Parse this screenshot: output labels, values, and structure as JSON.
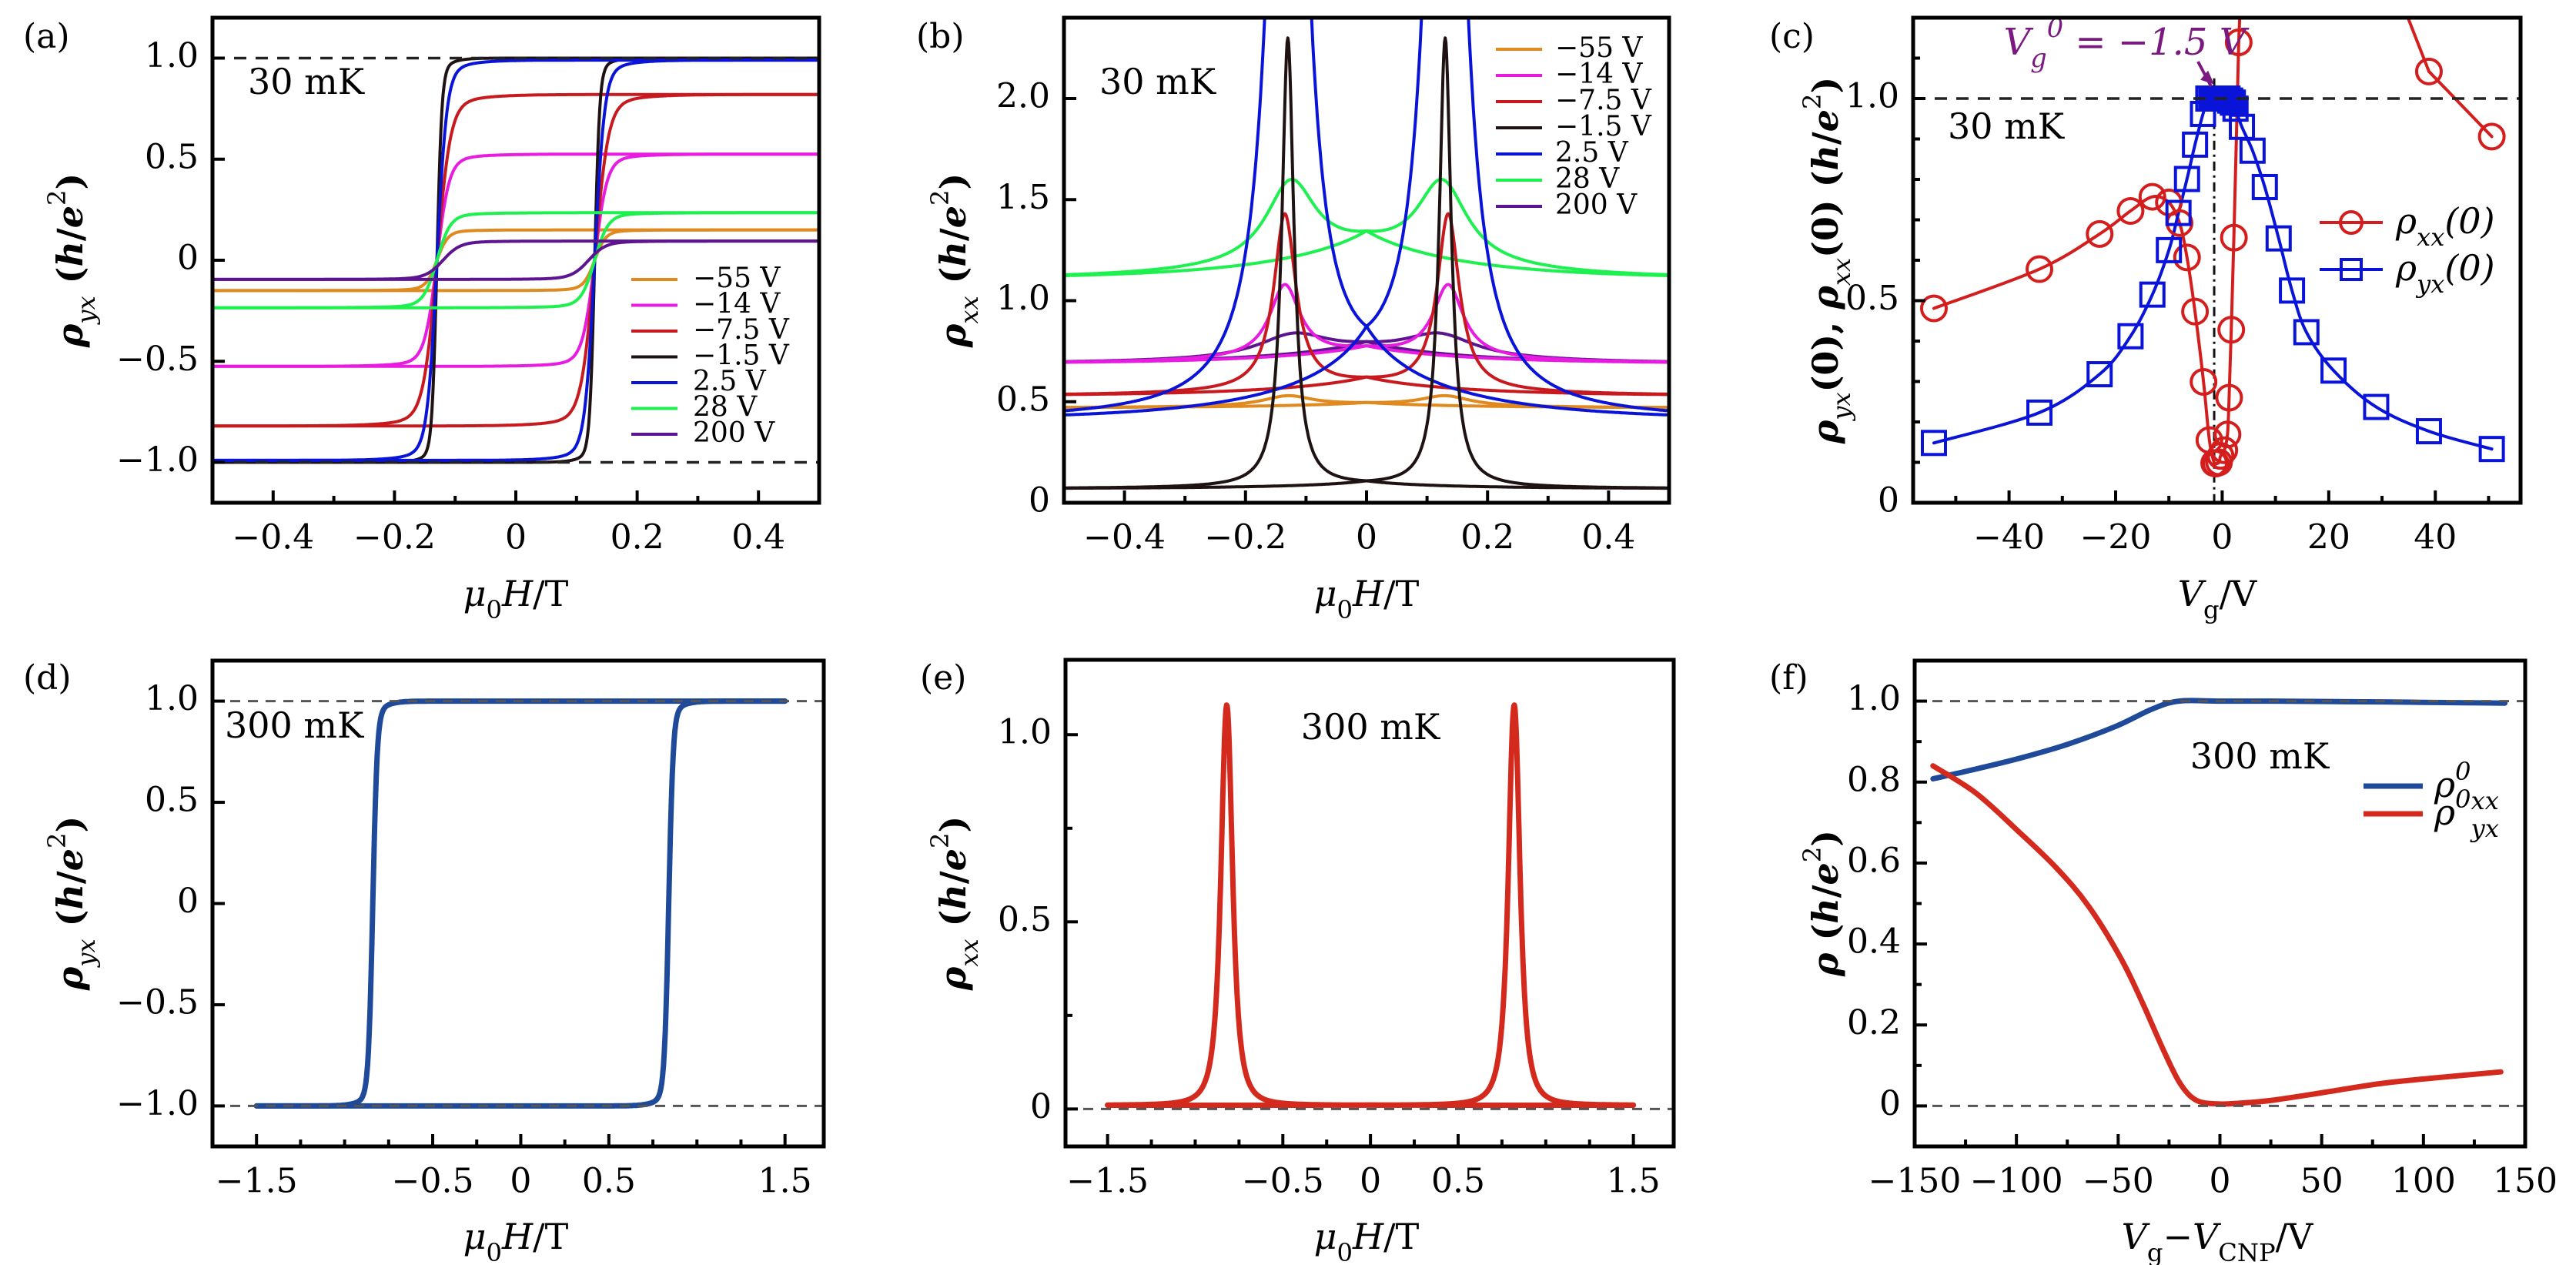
{
  "figure": {
    "colors": {
      "m55": "#E0891E",
      "m14": "#E81CE0",
      "m7_5": "#C81A1E",
      "m1_5": "#1E1212",
      "p2_5": "#0A14D8",
      "p28": "#1EF050",
      "p200": "#5C1490",
      "d_blue": "#1F4A9A",
      "e_red": "#D42A1E",
      "f_blue": "#1F4A9A",
      "f_red": "#D42A1E",
      "c_red": "#D41E1E",
      "c_blue": "#0A14D8",
      "annot_purple": "#7A1A80"
    }
  },
  "chart_data": [
    {
      "id": "a",
      "panel_label": "(a)",
      "type": "line",
      "title": "",
      "annotation": "30 mK",
      "xlabel": "μ0H/T",
      "ylabel": "ρyx (h/e²)",
      "xlim": [
        -0.5,
        0.5
      ],
      "ylim": [
        -1.2,
        1.2
      ],
      "xticks": [
        -0.4,
        -0.2,
        0,
        0.2,
        0.4
      ],
      "xtick_labels": [
        "−0.4",
        "−0.2",
        "0",
        "0.2",
        "0.4"
      ],
      "xminor": [
        -0.3,
        -0.1,
        0.1,
        0.3
      ],
      "yticks": [
        -1.0,
        -0.5,
        0,
        0.5,
        1.0
      ],
      "ytick_labels": [
        "−1.0",
        "−0.5",
        "0",
        "0.5",
        "1.0"
      ],
      "reference_lines": [
        1.0,
        -1.0
      ],
      "legend": "right-middle",
      "hysteresis": true,
      "series": [
        {
          "name": "−55 V",
          "color_key": "m55",
          "plateau": 0.15,
          "coercive_field": 0.13,
          "width": 0.018
        },
        {
          "name": "−14 V",
          "color_key": "m14",
          "plateau": 0.525,
          "coercive_field": 0.13,
          "width": 0.02
        },
        {
          "name": "−7.5 V",
          "color_key": "m7_5",
          "plateau": 0.82,
          "coercive_field": 0.13,
          "width": 0.022
        },
        {
          "name": "−1.5 V",
          "color_key": "m1_5",
          "plateau": 1.0,
          "coercive_field": 0.13,
          "width": 0.008
        },
        {
          "name": "2.5 V",
          "color_key": "p2_5",
          "plateau": 0.99,
          "coercive_field": 0.13,
          "width": 0.016
        },
        {
          "name": "28 V",
          "color_key": "p28",
          "plateau": 0.235,
          "coercive_field": 0.13,
          "width": 0.022
        },
        {
          "name": "200 V",
          "color_key": "p200",
          "plateau": 0.095,
          "coercive_field": 0.12,
          "width": 0.028
        }
      ]
    },
    {
      "id": "b",
      "panel_label": "(b)",
      "type": "line",
      "annotation": "30 mK",
      "xlabel": "μ0H/T",
      "ylabel": "ρxx (h/e²)",
      "xlim": [
        -0.5,
        0.5
      ],
      "ylim": [
        0,
        2.4
      ],
      "xticks": [
        -0.4,
        -0.2,
        0,
        0.2,
        0.4
      ],
      "xtick_labels": [
        "−0.4",
        "−0.2",
        "0",
        "0.2",
        "0.4"
      ],
      "xminor": [
        -0.3,
        -0.1,
        0.1,
        0.3
      ],
      "yticks": [
        0,
        0.5,
        1.0,
        1.5,
        2.0
      ],
      "ytick_labels": [
        "0",
        "0.5",
        "1.0",
        "1.5",
        "2.0"
      ],
      "legend": "top-right",
      "hysteresis": true,
      "series": [
        {
          "name": "−55 V",
          "color_key": "m55",
          "baseline_at_0_5T": 0.47,
          "peak": 0.53,
          "value_at_0T": 0.49,
          "peak_field": 0.13,
          "width": 0.05
        },
        {
          "name": "−14 V",
          "color_key": "m14",
          "baseline_at_0_5T": 0.69,
          "peak": 1.08,
          "value_at_0T": 0.76,
          "peak_field": 0.135,
          "width": 0.03
        },
        {
          "name": "−7.5 V",
          "color_key": "m7_5",
          "baseline_at_0_5T": 0.53,
          "peak": 1.43,
          "value_at_0T": 0.6,
          "peak_field": 0.135,
          "width": 0.022
        },
        {
          "name": "−1.5 V",
          "color_key": "m1_5",
          "baseline_at_0_5T": 0.07,
          "peak": 2.3,
          "value_at_0T": 0.09,
          "peak_field": 0.13,
          "width": 0.012
        },
        {
          "name": "2.5 V",
          "color_key": "p2_5",
          "baseline_at_0_5T": 0.41,
          "peak": 6.0,
          "value_at_0T": 0.63,
          "peak_field": 0.13,
          "width": 0.028
        },
        {
          "name": "28 V",
          "color_key": "p28",
          "baseline_at_0_5T": 1.11,
          "peak": 1.6,
          "value_at_0T": 1.29,
          "peak_field": 0.125,
          "width": 0.05
        },
        {
          "name": "200 V",
          "color_key": "p200",
          "baseline_at_0_5T": 0.69,
          "peak": 0.84,
          "value_at_0T": 0.77,
          "peak_field": 0.12,
          "width": 0.07
        }
      ]
    },
    {
      "id": "c",
      "panel_label": "(c)",
      "type": "line",
      "annotation": "30 mK",
      "annotation2": "V_g^0 = −1.5 V",
      "marker_line_x": -1.5,
      "xlabel": "Vg/V",
      "ylabel": "ρyx(0), ρxx(0) (h/e²)",
      "xlim": [
        -58,
        56
      ],
      "ylim": [
        0,
        1.2
      ],
      "xticks": [
        -40,
        -20,
        0,
        20,
        40
      ],
      "xtick_labels": [
        "−40",
        "−20",
        "0",
        "20",
        "40"
      ],
      "xminor": [
        -50,
        -30,
        -10,
        10,
        30,
        50
      ],
      "yticks": [
        0,
        0.5,
        1.0
      ],
      "ytick_labels": [
        "0",
        "0.5",
        "1.0"
      ],
      "yminor": [
        0.1,
        0.2,
        0.3,
        0.4,
        0.6,
        0.7,
        0.8,
        0.9,
        1.1
      ],
      "reference_lines": [
        1.0
      ],
      "legend": "right-middle",
      "series": [
        {
          "name": "ρxx(0)",
          "marker": "circle",
          "color_key": "c_red",
          "x": [
            -54.1,
            -34.3,
            -23.0,
            -17.2,
            -13.1,
            -10.0,
            -8.0,
            -6.6,
            -5.1,
            -3.5,
            -2.4,
            -1.5,
            -1.2,
            -0.6,
            -0.3,
            0.4,
            1.0,
            1.3,
            1.7,
            2.2,
            3.1,
            38.8,
            50.6
          ],
          "y": [
            0.481,
            0.578,
            0.665,
            0.722,
            0.757,
            0.743,
            0.692,
            0.607,
            0.473,
            0.299,
            0.155,
            0.098,
            0.097,
            0.1,
            0.116,
            0.13,
            0.169,
            0.26,
            0.428,
            0.656,
            1.139,
            1.067,
            0.906
          ],
          "offscale_segment": {
            "x": [
              3.1,
              3.6,
              31.9,
              38.8
            ],
            "y": [
              1.139,
              1.3,
              1.3,
              1.067
            ]
          }
        },
        {
          "name": "ρyx(0)",
          "marker": "square",
          "color_key": "c_blue",
          "x": [
            -54.1,
            -34.3,
            -23.0,
            -17.2,
            -13.1,
            -10.0,
            -8.2,
            -6.6,
            -5.1,
            -3.6,
            -2.6,
            -2.0,
            -1.5,
            -1.0,
            -0.5,
            0,
            0.5,
            1.0,
            1.5,
            2.0,
            2.5,
            3.7,
            5.7,
            8.0,
            10.6,
            13.1,
            15.8,
            20.9,
            28.9,
            38.8,
            50.6
          ],
          "y": [
            0.148,
            0.223,
            0.318,
            0.412,
            0.515,
            0.625,
            0.717,
            0.801,
            0.886,
            0.962,
            1.0,
            1.0,
            1.0,
            1.0,
            1.0,
            1.0,
            1.0,
            1.0,
            0.995,
            0.99,
            0.975,
            0.93,
            0.871,
            0.781,
            0.654,
            0.525,
            0.422,
            0.327,
            0.237,
            0.177,
            0.133
          ]
        }
      ]
    },
    {
      "id": "d",
      "panel_label": "(d)",
      "type": "line",
      "annotation": "300 mK",
      "xlabel": "μ0H/T",
      "ylabel": "ρyx (h/e²)",
      "xlim": [
        -1.75,
        1.72
      ],
      "ylim": [
        -1.2,
        1.2
      ],
      "xticks": [
        -1.5,
        -0.5,
        0,
        0.5,
        1.5
      ],
      "xtick_labels": [
        "−1.5",
        "−0.5",
        "0",
        "0.5",
        "1.5"
      ],
      "xminor": [
        -1.25,
        -1.0,
        -0.75,
        -0.25,
        0.25,
        0.75,
        1.0,
        1.25
      ],
      "yticks": [
        -1.0,
        -0.5,
        0,
        0.5,
        1.0
      ],
      "ytick_labels": [
        "−1.0",
        "−0.5",
        "0",
        "0.5",
        "1.0"
      ],
      "reference_lines": [
        1.0,
        -1.0
      ],
      "hysteresis": true,
      "series": [
        {
          "name": "ρyx",
          "color_key": "d_blue",
          "plateau": 1.0,
          "coercive_field": 0.84,
          "width": 0.025,
          "x_span": [
            -1.5,
            1.5
          ]
        }
      ]
    },
    {
      "id": "e",
      "panel_label": "(e)",
      "type": "line",
      "annotation": "300 mK",
      "xlabel": "μ0H/T",
      "ylabel": "ρxx (h/e²)",
      "xlim": [
        -1.74,
        1.73
      ],
      "ylim": [
        -0.1,
        1.2
      ],
      "xticks": [
        -1.5,
        -0.5,
        0,
        0.5,
        1.5
      ],
      "xtick_labels": [
        "−1.5",
        "−0.5",
        "0",
        "0.5",
        "1.5"
      ],
      "xminor": [
        -1.25,
        -1.0,
        -0.75,
        -0.25,
        0.25,
        0.75,
        1.0,
        1.25
      ],
      "yticks": [
        0,
        0.5,
        1.0
      ],
      "ytick_labels": [
        "0",
        "0.5",
        "1.0"
      ],
      "yminor": [
        0.25,
        0.75
      ],
      "reference_lines": [
        0
      ],
      "hysteresis": true,
      "series": [
        {
          "name": "ρxx",
          "color_key": "e_red",
          "baseline": 0.01,
          "peak": 1.08,
          "peak_field": 0.82,
          "width": 0.045,
          "x_span": [
            -1.5,
            1.5
          ]
        }
      ]
    },
    {
      "id": "f",
      "panel_label": "(f)",
      "type": "line",
      "annotation": "300 mK",
      "xlabel": "Vg−VCNP/V",
      "ylabel": "ρ (h/e²)",
      "xlim": [
        -150,
        150
      ],
      "ylim": [
        -0.1,
        1.1
      ],
      "xticks": [
        -150,
        -100,
        -50,
        0,
        50,
        100,
        150
      ],
      "xtick_labels": [
        "−150",
        "−100",
        "−50",
        "0",
        "50",
        "100",
        "150"
      ],
      "xminor": [
        -125,
        -75,
        -25,
        25,
        75,
        125
      ],
      "yticks": [
        0,
        0.2,
        0.4,
        0.6,
        0.8,
        1.0
      ],
      "ytick_labels": [
        "0",
        "0.2",
        "0.4",
        "0.6",
        "0.8",
        "1.0"
      ],
      "yminor": [
        0.1,
        0.3,
        0.5,
        0.7,
        0.9
      ],
      "reference_lines": [
        1.0,
        0
      ],
      "legend": "right-middle",
      "series": [
        {
          "name": "ρ⁰xx",
          "color_key": "f_blue",
          "x": [
            -141,
            -120,
            -99,
            -75,
            -51,
            -33,
            -20,
            0,
            25,
            52,
            80,
            100,
            120,
            140
          ],
          "y": [
            0.808,
            0.832,
            0.858,
            0.893,
            0.938,
            0.981,
            1.0,
            1.0,
            1.0,
            0.999,
            0.998,
            0.997,
            0.996,
            0.995
          ]
        },
        {
          "name": "ρ⁰yx",
          "color_key": "f_red",
          "x": [
            -141,
            -120,
            -99,
            -80.4,
            -64.5,
            -48.6,
            -38,
            -27.5,
            -19.5,
            -11.6,
            -1,
            10,
            25.5,
            52,
            78.5,
            105,
            138
          ],
          "y": [
            0.84,
            0.773,
            0.678,
            0.588,
            0.493,
            0.364,
            0.254,
            0.135,
            0.055,
            0.014,
            0.005,
            0.007,
            0.014,
            0.034,
            0.055,
            0.069,
            0.084
          ]
        }
      ]
    }
  ]
}
